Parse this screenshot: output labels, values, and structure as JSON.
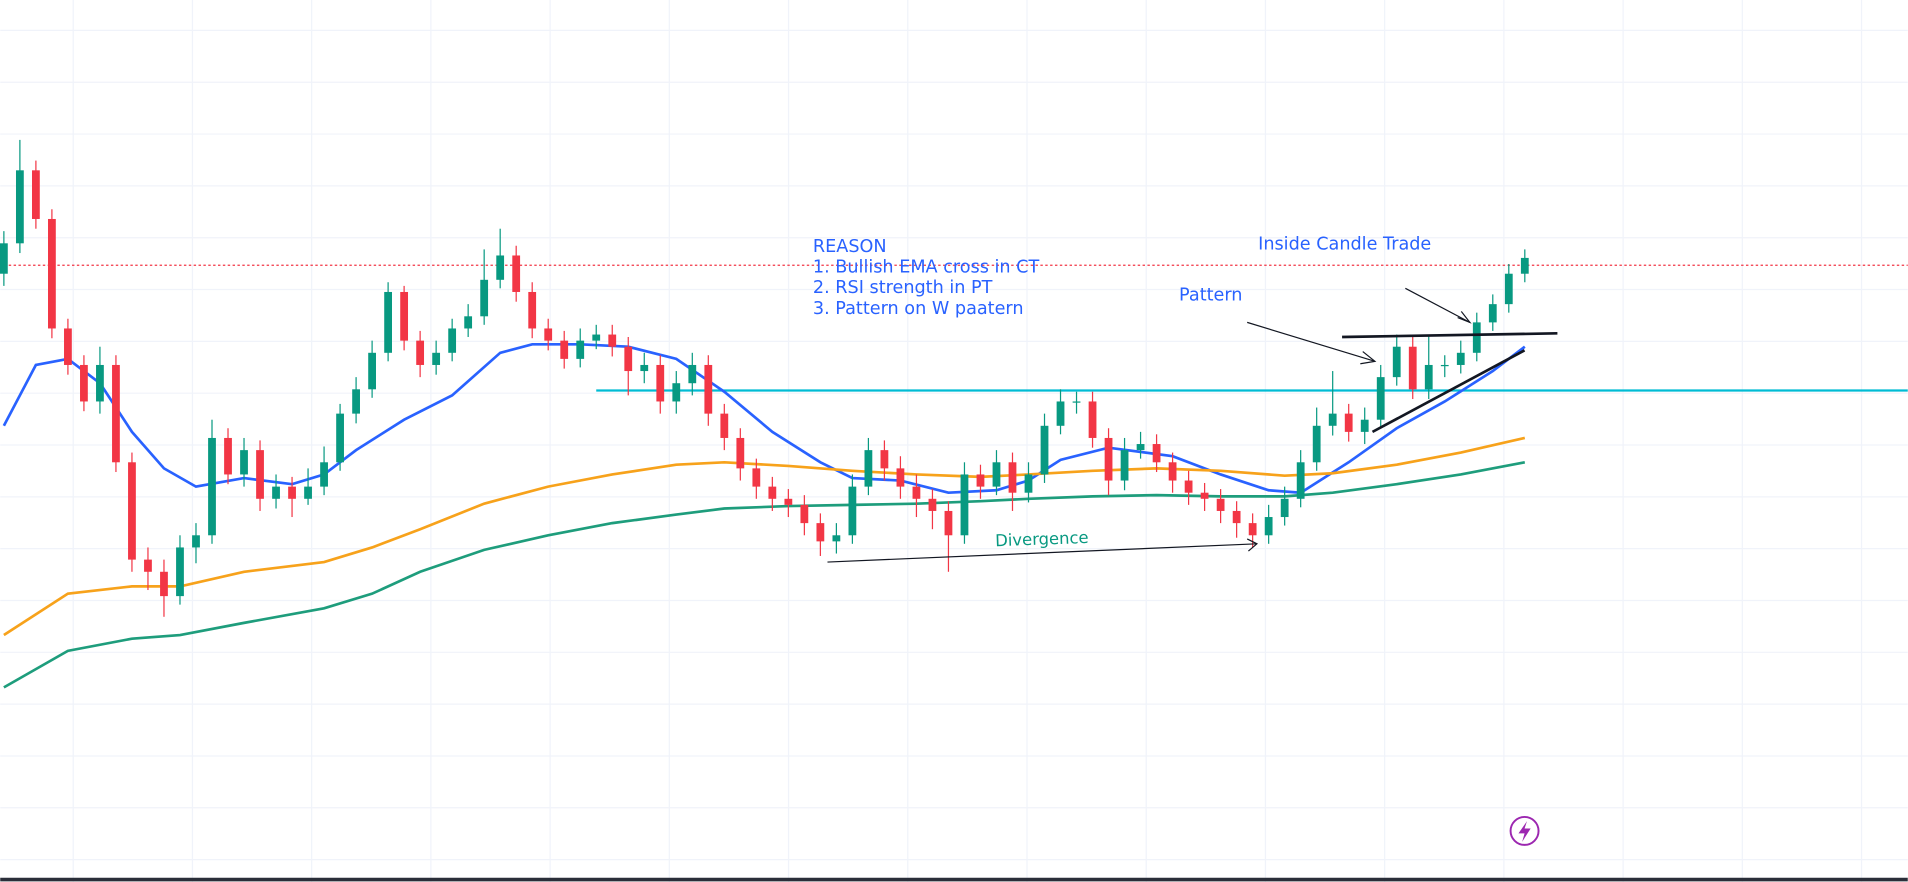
{
  "chart_data": {
    "type": "candlestick",
    "ylim": [
      0,
      725
    ],
    "grid": true,
    "up_color": "#089981",
    "down_color": "#f23645",
    "open": [
      500,
      525,
      585,
      545,
      455,
      425,
      395,
      425,
      345,
      265,
      255,
      235,
      275,
      285,
      365,
      335,
      355,
      315,
      325,
      315,
      325,
      345,
      385,
      405,
      435,
      485,
      445,
      425,
      435,
      455,
      465,
      495,
      515,
      485,
      455,
      445,
      430,
      445,
      450,
      440,
      420,
      425,
      395,
      410,
      425,
      385,
      365,
      340,
      325,
      315,
      310,
      295,
      280,
      285,
      325,
      355,
      340,
      325,
      315,
      305,
      285,
      335,
      325,
      345,
      320,
      335,
      375,
      395,
      395,
      365,
      330,
      355,
      360,
      345,
      330,
      320,
      315,
      305,
      295,
      285,
      300,
      315,
      345,
      375,
      385,
      370,
      380,
      415,
      440,
      405,
      425,
      425,
      435,
      460,
      475,
      500
    ],
    "high": [
      535,
      610,
      593,
      553,
      463,
      433,
      440,
      433,
      353,
      275,
      265,
      285,
      295,
      380,
      373,
      365,
      363,
      335,
      333,
      340,
      358,
      393,
      415,
      445,
      493,
      490,
      453,
      445,
      463,
      475,
      520,
      537,
      523,
      493,
      463,
      453,
      455,
      458,
      458,
      448,
      435,
      433,
      420,
      435,
      433,
      393,
      373,
      348,
      333,
      323,
      318,
      303,
      295,
      335,
      365,
      363,
      350,
      335,
      323,
      313,
      345,
      343,
      355,
      353,
      345,
      385,
      405,
      403,
      403,
      373,
      365,
      370,
      368,
      353,
      338,
      328,
      323,
      313,
      303,
      310,
      325,
      355,
      390,
      420,
      393,
      390,
      425,
      450,
      448,
      450,
      433,
      445,
      468,
      483,
      508,
      520
    ],
    "low": [
      490,
      517,
      537,
      447,
      417,
      387,
      385,
      337,
      255,
      240,
      218,
      228,
      262,
      278,
      327,
      325,
      305,
      307,
      300,
      310,
      318,
      338,
      377,
      398,
      428,
      437,
      415,
      417,
      428,
      448,
      458,
      488,
      477,
      447,
      437,
      422,
      423,
      438,
      432,
      400,
      410,
      385,
      385,
      400,
      375,
      355,
      330,
      315,
      305,
      300,
      285,
      268,
      270,
      278,
      318,
      330,
      315,
      300,
      290,
      255,
      278,
      315,
      318,
      305,
      312,
      328,
      368,
      385,
      357,
      318,
      322,
      348,
      337,
      320,
      310,
      305,
      295,
      283,
      275,
      278,
      293,
      308,
      338,
      367,
      362,
      360,
      373,
      408,
      397,
      397,
      415,
      418,
      428,
      453,
      468,
      493
    ],
    "close": [
      525,
      585,
      545,
      455,
      425,
      395,
      425,
      345,
      265,
      255,
      235,
      275,
      285,
      365,
      335,
      355,
      315,
      325,
      315,
      325,
      345,
      385,
      405,
      435,
      485,
      445,
      425,
      435,
      455,
      465,
      495,
      515,
      485,
      455,
      445,
      430,
      445,
      450,
      440,
      420,
      425,
      395,
      410,
      425,
      385,
      365,
      340,
      325,
      315,
      310,
      295,
      280,
      285,
      325,
      355,
      340,
      325,
      315,
      305,
      285,
      335,
      325,
      345,
      320,
      335,
      375,
      395,
      395,
      365,
      330,
      355,
      360,
      345,
      330,
      320,
      315,
      305,
      295,
      285,
      300,
      315,
      345,
      375,
      385,
      370,
      380,
      415,
      440,
      405,
      425,
      425,
      435,
      460,
      475,
      500,
      513
    ],
    "lines": [
      {
        "color": "#2962ff",
        "x": [
          0,
          2,
          4,
          6,
          8,
          10,
          12,
          15,
          18,
          20,
          22,
          25,
          28,
          31,
          33,
          36,
          39,
          42,
          45,
          48,
          51,
          53,
          56,
          59,
          62,
          64,
          66,
          69,
          73,
          76,
          79,
          81,
          84,
          87,
          90,
          93,
          95
        ],
        "values": [
          375,
          425,
          430,
          410,
          370,
          340,
          325,
          332,
          327,
          335,
          355,
          380,
          400,
          435,
          442,
          442,
          440,
          430,
          403,
          370,
          345,
          332,
          330,
          320,
          322,
          330,
          347,
          357,
          350,
          335,
          322,
          320,
          345,
          373,
          395,
          420,
          440
        ]
      },
      {
        "color": "#f7a21b",
        "x": [
          0,
          4,
          8,
          11,
          15,
          20,
          23,
          26,
          30,
          34,
          38,
          42,
          45,
          49,
          53,
          57,
          61,
          64,
          68,
          72,
          76,
          80,
          83,
          87,
          91,
          95
        ],
        "values": [
          203,
          237,
          243,
          243,
          255,
          263,
          275,
          290,
          311,
          325,
          335,
          343,
          345,
          342,
          338,
          335,
          333,
          335,
          338,
          340,
          338,
          334,
          336,
          343,
          353,
          365
        ]
      },
      {
        "color": "#1e9d7c",
        "x": [
          0,
          4,
          8,
          11,
          15,
          20,
          23,
          26,
          30,
          34,
          38,
          42,
          45,
          49,
          53,
          57,
          61,
          64,
          68,
          72,
          76,
          80,
          83,
          87,
          91,
          95
        ],
        "values": [
          160,
          190,
          200,
          203,
          213,
          225,
          237,
          255,
          273,
          285,
          295,
          302,
          307,
          309,
          310,
          311,
          313,
          315,
          317,
          318,
          317,
          317,
          320,
          327,
          335,
          345
        ]
      }
    ],
    "hlines": [
      {
        "value": 507,
        "color": "#f23645",
        "dashed": true,
        "from": 0
      },
      {
        "value": 404,
        "color": "#00bcd4",
        "dashed": false,
        "from": 37
      }
    ],
    "reason": [
      "REASON",
      "1. Bullish EMA cross in CT",
      "2. RSI strength in PT",
      "3. Pattern on W paatern"
    ],
    "annotations": {
      "inside": "Inside Candle Trade",
      "pattern": "Pattern",
      "divergence": "Divergence"
    }
  }
}
